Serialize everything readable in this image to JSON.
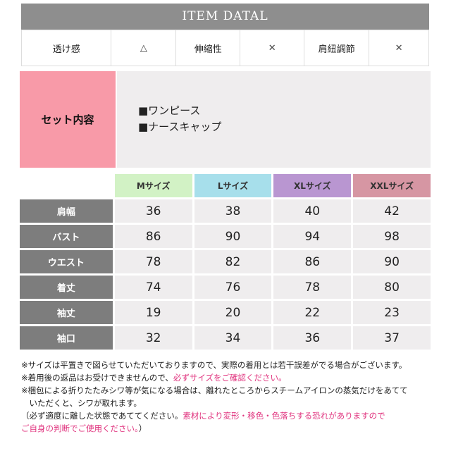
{
  "header": {
    "title": "ITEM DATAL"
  },
  "attributes": [
    {
      "label": "透け感",
      "value": "△"
    },
    {
      "label": "伸縮性",
      "value": "✕"
    },
    {
      "label": "肩紐調節",
      "value": "✕"
    }
  ],
  "set": {
    "label": "セット内容",
    "items": [
      "■ワンピース",
      "■ナースキャップ"
    ]
  },
  "size_table": {
    "headers": [
      {
        "label": "Mサイズ",
        "color": "#d2f2c5"
      },
      {
        "label": "Lサイズ",
        "color": "#a7dfeb"
      },
      {
        "label": "XLサイズ",
        "color": "#b996d1"
      },
      {
        "label": "XXLサイズ",
        "color": "#d696a3"
      }
    ],
    "rows": [
      {
        "label": "肩幅",
        "values": [
          "36",
          "38",
          "40",
          "42"
        ]
      },
      {
        "label": "バスト",
        "values": [
          "86",
          "90",
          "94",
          "98"
        ]
      },
      {
        "label": "ウエスト",
        "values": [
          "78",
          "82",
          "86",
          "90"
        ]
      },
      {
        "label": "着丈",
        "values": [
          "74",
          "76",
          "78",
          "80"
        ]
      },
      {
        "label": "袖丈",
        "values": [
          "19",
          "20",
          "22",
          "23"
        ]
      },
      {
        "label": "袖口",
        "values": [
          "32",
          "34",
          "36",
          "37"
        ]
      }
    ]
  },
  "notes": {
    "n1": "※サイズは平置きで図らせていただいておりますので、実際の着用とは若干誤差がでる場合がございます。",
    "n2a": "※着用後の返品はお受けできませんので、",
    "n2b": "必ずサイズをご確認ください。",
    "n3a": "※梱包による折りたたみシワ等が気になる場合は、離れたところからスチームアイロンの蒸気だけをあてて",
    "n3b": "　いただくと、シワが取れます。",
    "n4a": "（必ず適度に離した状態であててください。",
    "n4b": "素材により変形・移色・色落ちする恐れがありますので",
    "n5a": "ご自身の判断でご使用ください。",
    "n5b": "）"
  }
}
